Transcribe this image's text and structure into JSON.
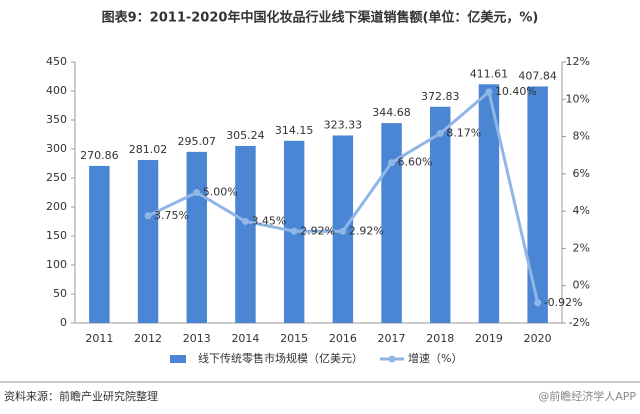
{
  "chart_data": {
    "type": "bar_line",
    "title": "图表9：2011-2020年中国化妆品行业线下渠道销售额(单位：亿美元，%)",
    "categories": [
      "2011",
      "2012",
      "2013",
      "2014",
      "2015",
      "2016",
      "2017",
      "2018",
      "2019",
      "2020"
    ],
    "series": [
      {
        "name": "线下传统零售市场规模（亿美元）",
        "type": "bar",
        "color": "#4a86d4",
        "values": [
          270.86,
          281.02,
          295.07,
          305.24,
          314.15,
          323.33,
          344.68,
          372.83,
          411.61,
          407.84
        ]
      },
      {
        "name": "增速（%）",
        "type": "line",
        "axis": "y2",
        "color": "#8fb6e6",
        "values": [
          null,
          3.75,
          5.0,
          3.45,
          2.92,
          2.92,
          6.6,
          8.17,
          10.4,
          -0.92
        ],
        "value_labels": [
          null,
          "3.75%",
          "5.00%",
          "3.45%",
          "2.92%",
          "2.92%",
          "6.60%",
          "8.17%",
          "10.40%",
          "-0.92%"
        ]
      }
    ],
    "ylim": [
      0,
      450
    ],
    "yticks": [
      0,
      50,
      100,
      150,
      200,
      250,
      300,
      350,
      400,
      450
    ],
    "y2lim": [
      -2,
      12
    ],
    "y2ticks": [
      {
        "value": -2,
        "label": "-2%"
      },
      {
        "value": 0,
        "label": "0%"
      },
      {
        "value": 2,
        "label": "2%"
      },
      {
        "value": 4,
        "label": "4%"
      },
      {
        "value": 6,
        "label": "6%"
      },
      {
        "value": 8,
        "label": "8%"
      },
      {
        "value": 10,
        "label": "10%"
      },
      {
        "value": 12,
        "label": "12%"
      }
    ],
    "legend": "bottom",
    "source": "资料来源：前瞻产业研究院整理",
    "footer_right": "@前瞻经济学人APP"
  }
}
